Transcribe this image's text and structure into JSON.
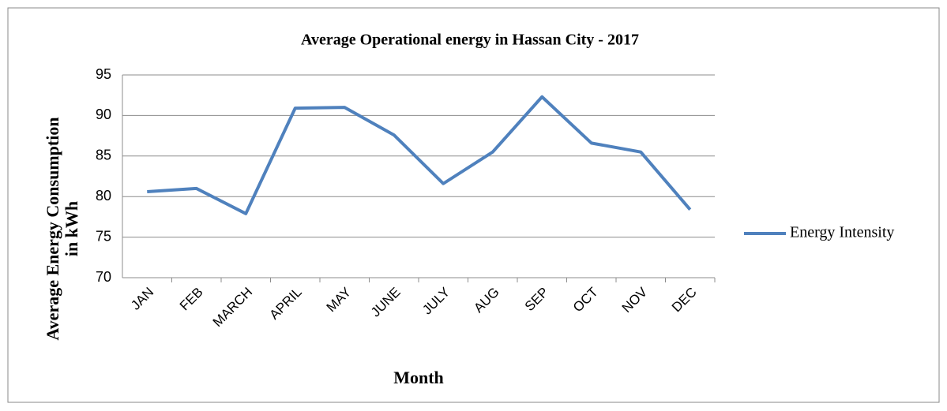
{
  "chart_data": {
    "type": "line",
    "title": "Average Operational energy in Hassan City - 2017",
    "xlabel": "Month",
    "ylabel": "Average Energy Consumption in kWh",
    "categories": [
      "JAN",
      "FEB",
      "MARCH",
      "APRIL",
      "MAY",
      "JUNE",
      "JULY",
      "AUG",
      "SEP",
      "OCT",
      "NOV",
      "DEC"
    ],
    "series": [
      {
        "name": "Energy Intensity",
        "color": "#4f81bd",
        "values": [
          80.6,
          81.0,
          77.9,
          90.9,
          91.0,
          87.6,
          81.6,
          85.5,
          92.3,
          86.6,
          85.5,
          78.4
        ]
      }
    ],
    "ylim": [
      70,
      95
    ],
    "yticks": [
      70,
      75,
      80,
      85,
      90,
      95
    ],
    "grid": true,
    "legend": "right"
  }
}
